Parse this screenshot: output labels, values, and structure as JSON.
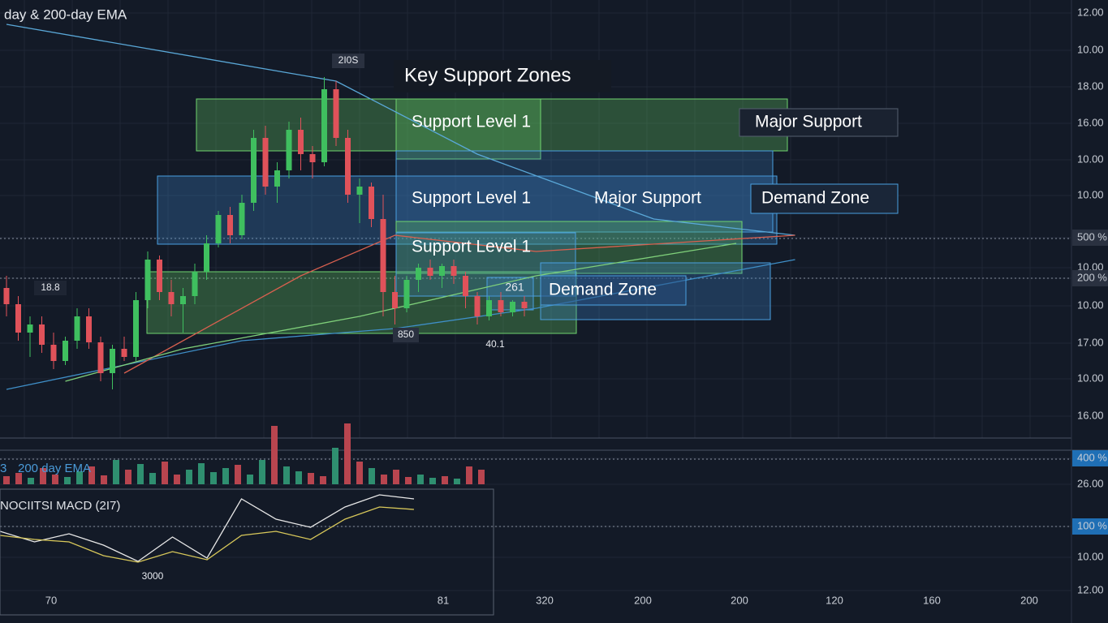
{
  "title": "day & 200-day EMA",
  "annotations": {
    "key_zones": "Key Support Zones",
    "support_1": "Support Level 1",
    "support_2": "Support Level 1",
    "support_3": "Support Level 1",
    "major_1": "Major Support",
    "major_2": "Major Support",
    "demand_1": "Demand Zone",
    "demand_2": "Demand Zone",
    "peak_label": "2I0S",
    "left_label": "18.8",
    "low_label": "850",
    "low_label_2": "40.1",
    "mid_label": "261"
  },
  "price_axis": [
    "12.00",
    "10.00",
    "18.00",
    "16.00",
    "10.00",
    "10.00",
    "500 %",
    "10.00",
    "200 %",
    "10.00",
    "17.00",
    "10.00",
    "16.00",
    "400 %",
    "26.00",
    "100 %",
    "10.00",
    "12.00"
  ],
  "time_axis": [
    "70",
    "81",
    "320",
    "200",
    "200",
    "120",
    "160",
    "200"
  ],
  "volume_panel": {
    "label_prefix": "3",
    "label": "200 day EMA"
  },
  "macd_panel": {
    "label": "NOCIITSI MACD (2I7)",
    "marker": "3000"
  },
  "price_scale": [
    0,
    540
  ],
  "candles": [
    [
      185,
      200,
      150,
      165
    ],
    [
      165,
      175,
      120,
      130
    ],
    [
      130,
      150,
      100,
      140
    ],
    [
      140,
      150,
      105,
      115
    ],
    [
      115,
      130,
      85,
      95
    ],
    [
      95,
      125,
      90,
      120
    ],
    [
      120,
      160,
      110,
      150
    ],
    [
      150,
      160,
      110,
      118
    ],
    [
      118,
      125,
      70,
      80
    ],
    [
      80,
      115,
      60,
      110
    ],
    [
      110,
      125,
      95,
      100
    ],
    [
      100,
      180,
      95,
      170
    ],
    [
      170,
      230,
      160,
      220
    ],
    [
      220,
      225,
      170,
      180
    ],
    [
      180,
      195,
      150,
      165
    ],
    [
      165,
      185,
      130,
      175
    ],
    [
      175,
      215,
      165,
      205
    ],
    [
      205,
      250,
      195,
      240
    ],
    [
      240,
      280,
      235,
      275
    ],
    [
      275,
      285,
      240,
      250
    ],
    [
      250,
      300,
      245,
      290
    ],
    [
      290,
      380,
      280,
      370
    ],
    [
      370,
      385,
      300,
      310
    ],
    [
      310,
      340,
      290,
      330
    ],
    [
      330,
      390,
      320,
      380
    ],
    [
      380,
      395,
      330,
      350
    ],
    [
      350,
      360,
      320,
      340
    ],
    [
      340,
      445,
      335,
      430
    ],
    [
      430,
      440,
      360,
      370
    ],
    [
      370,
      380,
      290,
      300
    ],
    [
      300,
      320,
      265,
      310
    ],
    [
      310,
      315,
      260,
      270
    ],
    [
      270,
      300,
      150,
      180
    ],
    [
      180,
      200,
      140,
      160
    ],
    [
      160,
      200,
      155,
      195
    ],
    [
      195,
      215,
      180,
      210
    ],
    [
      210,
      220,
      195,
      200
    ],
    [
      200,
      215,
      185,
      212
    ],
    [
      212,
      220,
      190,
      200
    ],
    [
      200,
      205,
      160,
      175
    ],
    [
      175,
      180,
      140,
      150
    ],
    [
      150,
      175,
      145,
      170
    ],
    [
      170,
      180,
      150,
      155
    ],
    [
      155,
      170,
      150,
      168
    ],
    [
      168,
      175,
      150,
      160
    ]
  ],
  "ema_lines": [
    {
      "color": "#5aa8d8",
      "x": [
        0,
        28,
        40,
        55,
        67
      ],
      "values": [
        510,
        440,
        350,
        270,
        250
      ]
    },
    {
      "color": "#3f8fc8",
      "x": [
        0,
        20,
        33,
        45,
        67
      ],
      "values": [
        60,
        120,
        135,
        160,
        220
      ]
    },
    {
      "color": "#d9604f",
      "x": [
        10,
        25,
        33,
        45,
        67
      ],
      "values": [
        80,
        200,
        250,
        230,
        250
      ]
    },
    {
      "color": "#7fd07a",
      "x": [
        5,
        15,
        30,
        45,
        62
      ],
      "values": [
        70,
        110,
        150,
        200,
        240
      ]
    }
  ],
  "volume": [
    10,
    14,
    8,
    20,
    12,
    9,
    16,
    22,
    11,
    30,
    18,
    25,
    14,
    28,
    12,
    18,
    26,
    15,
    20,
    24,
    12,
    30,
    72,
    22,
    16,
    14,
    10,
    45,
    75,
    28,
    20,
    12,
    18,
    9,
    12,
    8,
    10,
    7,
    22,
    18
  ],
  "macd": [
    {
      "color": "#e8e8e8",
      "values": [
        105,
        92,
        102,
        88,
        68,
        98,
        72,
        145,
        120,
        110,
        135,
        150,
        145
      ]
    },
    {
      "color": "#d8c85a",
      "values": [
        100,
        95,
        92,
        75,
        67,
        80,
        70,
        100,
        105,
        95,
        120,
        135,
        132
      ]
    }
  ]
}
